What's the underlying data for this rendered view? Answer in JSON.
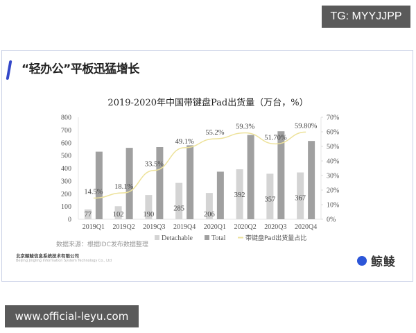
{
  "watermark_top": "TG: MYYJJPP",
  "watermark_bottom": "www.official-leyu.com",
  "slide": {
    "title": "“轻办公”平板迅猛增长",
    "source": "数据来源：根据IDC发布数据整理",
    "company_cn": "北京鲸鲮信息系统技术有限公司",
    "company_en": "Beijing Jingling Information System Technology Co., Ltd",
    "logo_text": "鲸鲮"
  },
  "chart_data": {
    "type": "bar",
    "title": "2019-2020年中国带键盘Pad出货量（万台，%）",
    "categories": [
      "2019Q1",
      "2019Q2",
      "2019Q3",
      "2019Q4",
      "2020Q1",
      "2020Q2",
      "2020Q3",
      "2020Q4"
    ],
    "series": [
      {
        "name": "Detachable",
        "type": "bar",
        "axis": "left",
        "color": "#d4d4d4",
        "values": [
          77,
          102,
          190,
          285,
          206,
          392,
          357,
          367
        ]
      },
      {
        "name": "Total",
        "type": "bar",
        "axis": "left",
        "color": "#a0a0a0",
        "values": [
          530,
          560,
          566,
          580,
          373,
          661,
          690,
          614
        ]
      },
      {
        "name": "带键盘Pad出货量占比",
        "type": "line",
        "axis": "right",
        "color": "#ede29a",
        "values": [
          14.5,
          18.1,
          33.5,
          49.1,
          55.2,
          59.3,
          51.7,
          59.8
        ]
      }
    ],
    "data_labels": {
      "Detachable": [
        "77",
        "102",
        "190",
        "285",
        "206",
        "392",
        "357",
        "367"
      ],
      "ratio": [
        "14.5%",
        "18.1%",
        "33.5%",
        "49.1%",
        "55.2%",
        "59.3%",
        "51.70%",
        "59.80%"
      ]
    },
    "left_axis": {
      "min": 0,
      "max": 800,
      "ticks": [
        "0",
        "100",
        "200",
        "300",
        "400",
        "500",
        "600",
        "700",
        "800"
      ]
    },
    "right_axis": {
      "min": 0,
      "max": 70,
      "ticks": [
        "0%",
        "10%",
        "20%",
        "30%",
        "40%",
        "50%",
        "60%",
        "70%"
      ]
    },
    "legend": [
      "Detachable",
      "Total",
      "带键盘Pad出货量占比"
    ],
    "legend_position": "bottom",
    "grid": false
  }
}
